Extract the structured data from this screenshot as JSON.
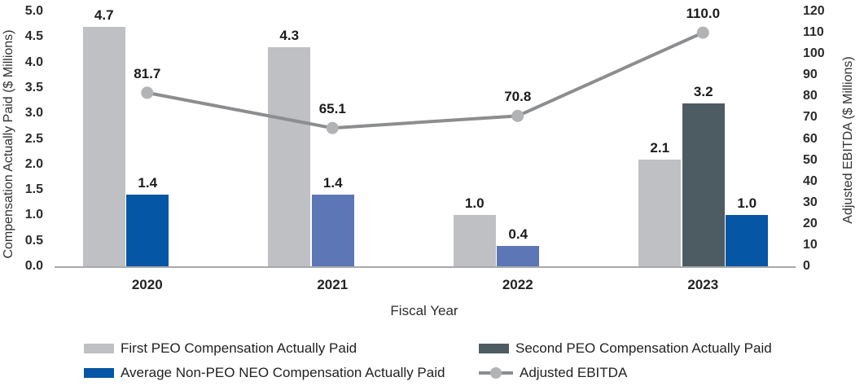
{
  "chart_data": {
    "type": "combo-bar-line",
    "categories": [
      "2020",
      "2021",
      "2022",
      "2023"
    ],
    "x_axis": {
      "title": "Fiscal Year"
    },
    "left_axis": {
      "title": "Compensation Actually Paid ($ Millions)",
      "min": 0,
      "max": 5,
      "step": 0.5,
      "ticks": [
        "0.0",
        "0.5",
        "1.0",
        "1.5",
        "2.0",
        "2.5",
        "3.0",
        "3.5",
        "4.0",
        "4.5",
        "5.0"
      ]
    },
    "right_axis": {
      "title": "Adjusted EBITDA ($ Millions)",
      "min": 0,
      "max": 120,
      "step": 10,
      "ticks": [
        "0",
        "10",
        "20",
        "30",
        "40",
        "50",
        "60",
        "70",
        "80",
        "90",
        "100",
        "110",
        "120"
      ]
    },
    "series": [
      {
        "name": "First PEO Compensation Actually Paid",
        "type": "bar",
        "axis": "left",
        "values": [
          4.7,
          4.3,
          1.0,
          2.1
        ]
      },
      {
        "name": "Second PEO Compensation Actually Paid",
        "type": "bar",
        "axis": "left",
        "values": [
          null,
          null,
          null,
          3.2
        ]
      },
      {
        "name": "Average Non-PEO NEO Compensation Actually Paid",
        "type": "bar",
        "axis": "left",
        "values": [
          1.4,
          1.4,
          0.4,
          1.0
        ]
      },
      {
        "name": "Adjusted EBITDA",
        "type": "line",
        "axis": "right",
        "values": [
          81.7,
          65.1,
          70.8,
          110.0
        ]
      }
    ],
    "bars": [
      {
        "category_index": 0,
        "slot": 0,
        "value": 4.7,
        "label": "4.7",
        "color_key": "bar_gray"
      },
      {
        "category_index": 0,
        "slot": 1,
        "value": 1.4,
        "label": "1.4",
        "color_key": "bar_blue_dark"
      },
      {
        "category_index": 1,
        "slot": 0,
        "value": 4.3,
        "label": "4.3",
        "color_key": "bar_gray"
      },
      {
        "category_index": 1,
        "slot": 1,
        "value": 1.4,
        "label": "1.4",
        "color_key": "bar_blue_medium"
      },
      {
        "category_index": 2,
        "slot": 0,
        "value": 1.0,
        "label": "1.0",
        "color_key": "bar_gray"
      },
      {
        "category_index": 2,
        "slot": 1,
        "value": 0.4,
        "label": "0.4",
        "color_key": "bar_blue_medium"
      },
      {
        "category_index": 3,
        "slot": 0,
        "value": 2.1,
        "label": "2.1",
        "color_key": "bar_gray"
      },
      {
        "category_index": 3,
        "slot": 1,
        "value": 3.2,
        "label": "3.2",
        "color_key": "bar_slate"
      },
      {
        "category_index": 3,
        "slot": 2,
        "value": 1.0,
        "label": "1.0",
        "color_key": "bar_blue_dark"
      }
    ],
    "line": {
      "name": "Adjusted EBITDA",
      "values": [
        81.7,
        65.1,
        70.8,
        110.0
      ],
      "labels": [
        "81.7",
        "65.1",
        "70.8",
        "110.0"
      ]
    },
    "legend": [
      {
        "swatch": "bar",
        "color_key": "bar_gray",
        "label": "First PEO Compensation Actually Paid",
        "col": 0,
        "row": 0
      },
      {
        "swatch": "bar",
        "color_key": "bar_slate",
        "label": "Second PEO Compensation Actually Paid",
        "col": 1,
        "row": 0
      },
      {
        "swatch": "bar",
        "color_key": "bar_blue_dark",
        "label": "Average Non-PEO NEO Compensation Actually Paid",
        "col": 0,
        "row": 1
      },
      {
        "swatch": "line",
        "color_key": "line_gray",
        "label": "Adjusted EBITDA",
        "col": 1,
        "row": 1
      }
    ]
  },
  "colors": {
    "bar_gray": "#bfc0c4",
    "bar_slate": "#4d5c62",
    "bar_blue_dark": "#0556a4",
    "bar_blue_medium": "#5c76b6",
    "line_gray": "#8c8d8f",
    "marker_gray": "#b2b3b5",
    "axis_line": "#a8a9ab",
    "text_dark": "#1c1c1c"
  }
}
